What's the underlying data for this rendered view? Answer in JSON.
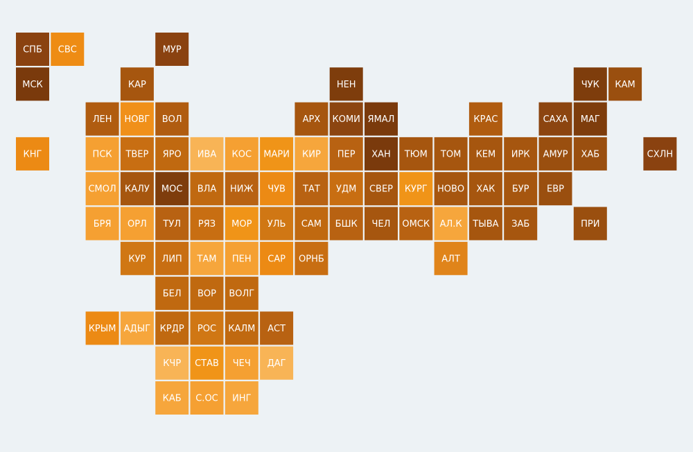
{
  "tiles": [
    {
      "label": "СПБ",
      "color": "#8a4210"
    },
    {
      "label": "СВС",
      "color": "#ee8c14"
    },
    {
      "label": "МУР",
      "color": "#8a4210"
    },
    {
      "label": "МСК",
      "color": "#7a3a0c"
    },
    {
      "label": "КАР",
      "color": "#a6560f"
    },
    {
      "label": "НЕН",
      "color": "#7e3d0c"
    },
    {
      "label": "ЧУК",
      "color": "#7e3d0c"
    },
    {
      "label": "КАМ",
      "color": "#9a4f0f"
    },
    {
      "label": "ЛЕН",
      "color": "#b05c10"
    },
    {
      "label": "НОВГ",
      "color": "#f0901a"
    },
    {
      "label": "ВОЛ",
      "color": "#b05c10"
    },
    {
      "label": "АРХ",
      "color": "#a6560f"
    },
    {
      "label": "КОМИ",
      "color": "#8c4510"
    },
    {
      "label": "ЯМАЛ",
      "color": "#7a3a0c"
    },
    {
      "label": "КРАС",
      "color": "#b05c10"
    },
    {
      "label": "САХА",
      "color": "#8c4510"
    },
    {
      "label": "МАГ",
      "color": "#7e3d0c"
    },
    {
      "label": "КНГ",
      "color": "#ec8a14"
    },
    {
      "label": "ПСК",
      "color": "#f5a032"
    },
    {
      "label": "ТВЕР",
      "color": "#c86e12"
    },
    {
      "label": "ЯРО",
      "color": "#c06910"
    },
    {
      "label": "ИВА",
      "color": "#f8b456"
    },
    {
      "label": "КОС",
      "color": "#f5a032"
    },
    {
      "label": "МАРИ",
      "color": "#f09418"
    },
    {
      "label": "КИР",
      "color": "#f6a63c"
    },
    {
      "label": "ПЕР",
      "color": "#b86212"
    },
    {
      "label": "ХАН",
      "color": "#7a3a0c"
    },
    {
      "label": "ТЮМ",
      "color": "#a6560f"
    },
    {
      "label": "ТОМ",
      "color": "#a6560f"
    },
    {
      "label": "КЕМ",
      "color": "#a6560f"
    },
    {
      "label": "ИРК",
      "color": "#a6560f"
    },
    {
      "label": "АМУР",
      "color": "#9a4f0f"
    },
    {
      "label": "ХАБ",
      "color": "#9a4f0f"
    },
    {
      "label": "СХЛН",
      "color": "#8a4210"
    },
    {
      "label": "СМОЛ",
      "color": "#f5a032"
    },
    {
      "label": "КАЛУ",
      "color": "#a6560f"
    },
    {
      "label": "МОС",
      "color": "#7e3d0c"
    },
    {
      "label": "ВЛА",
      "color": "#c06910"
    },
    {
      "label": "НИЖ",
      "color": "#b86212"
    },
    {
      "label": "ЧУВ",
      "color": "#ec8a14"
    },
    {
      "label": "ТАТ",
      "color": "#b86212"
    },
    {
      "label": "УДМ",
      "color": "#c86e12"
    },
    {
      "label": "СВЕР",
      "color": "#a6560f"
    },
    {
      "label": "КУРГ",
      "color": "#f09418"
    },
    {
      "label": "НОВО",
      "color": "#a6560f"
    },
    {
      "label": "ХАК",
      "color": "#a6560f"
    },
    {
      "label": "БУР",
      "color": "#a6560f"
    },
    {
      "label": "ЕВР",
      "color": "#9a4f0f"
    },
    {
      "label": "БРЯ",
      "color": "#f5a032"
    },
    {
      "label": "ОРЛ",
      "color": "#f5a032"
    },
    {
      "label": "ТУЛ",
      "color": "#b86212"
    },
    {
      "label": "РЯЗ",
      "color": "#c86e12"
    },
    {
      "label": "МОР",
      "color": "#f09418"
    },
    {
      "label": "УЛЬ",
      "color": "#d07714"
    },
    {
      "label": "САМ",
      "color": "#c06910"
    },
    {
      "label": "БШК",
      "color": "#b86212"
    },
    {
      "label": "ЧЕЛ",
      "color": "#a6560f"
    },
    {
      "label": "ОМСК",
      "color": "#b86212"
    },
    {
      "label": "АЛ.К",
      "color": "#f6a63c"
    },
    {
      "label": "ТЫВА",
      "color": "#a6560f"
    },
    {
      "label": "ЗАБ",
      "color": "#a6560f"
    },
    {
      "label": "ПРИ",
      "color": "#9a4f0f"
    },
    {
      "label": "КУР",
      "color": "#d07714"
    },
    {
      "label": "ЛИП",
      "color": "#c86e12"
    },
    {
      "label": "ТАМ",
      "color": "#f6a63c"
    },
    {
      "label": "ПЕН",
      "color": "#f5a032"
    },
    {
      "label": "САР",
      "color": "#ec8a14"
    },
    {
      "label": "ОРНБ",
      "color": "#c86e12"
    },
    {
      "label": "АЛТ",
      "color": "#e0841a"
    },
    {
      "label": "БЕЛ",
      "color": "#c06910"
    },
    {
      "label": "ВОР",
      "color": "#c06910"
    },
    {
      "label": "ВОЛГ",
      "color": "#c06910"
    },
    {
      "label": "КРЫМ",
      "color": "#ec8a14"
    },
    {
      "label": "АДЫГ",
      "color": "#f6a63c"
    },
    {
      "label": "КРДР",
      "color": "#c06910"
    },
    {
      "label": "РОС",
      "color": "#d07714"
    },
    {
      "label": "КАЛМ",
      "color": "#c06910"
    },
    {
      "label": "АСТ",
      "color": "#b86212"
    },
    {
      "label": "КЧР",
      "color": "#f8b456"
    },
    {
      "label": "СТАВ",
      "color": "#f09418"
    },
    {
      "label": "ЧЕЧ",
      "color": "#f5a032"
    },
    {
      "label": "ДАГ",
      "color": "#f8b456"
    },
    {
      "label": "КАБ",
      "color": "#f6a63c"
    },
    {
      "label": "С.ОС",
      "color": "#f5a032"
    },
    {
      "label": "ИНГ",
      "color": "#f6a63c"
    }
  ]
}
